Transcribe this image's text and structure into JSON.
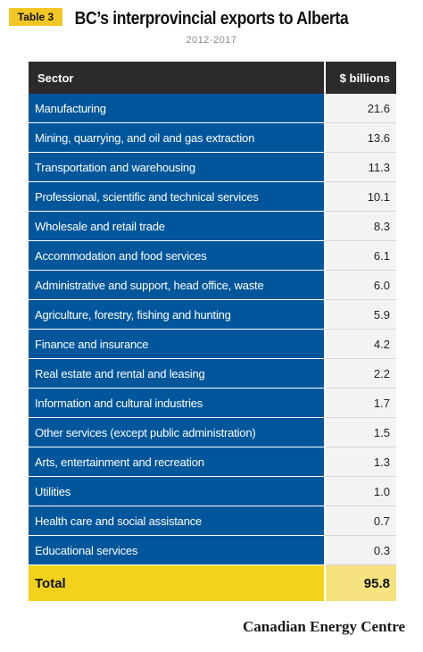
{
  "badge": "Table 3",
  "title": "BC’s interprovincial exports to Alberta",
  "subtitle": "2012-2017",
  "brand": "Canadian Energy Centre",
  "colors": {
    "header": "#2b2b2b",
    "sector_bg": "#00569b",
    "value_bg": "#f3f3f3",
    "total": "#f2d21b",
    "badge": "#f2c624"
  },
  "chart_data": {
    "type": "table",
    "title": "BC’s interprovincial exports to Alberta",
    "subtitle": "2012-2017",
    "columns": [
      "Sector",
      "$ billions"
    ],
    "rows": [
      [
        "Manufacturing",
        "21.6"
      ],
      [
        "Mining, quarrying, and oil and gas extraction",
        "13.6"
      ],
      [
        "Transportation and warehousing",
        "11.3"
      ],
      [
        "Professional, scientific and technical services",
        "10.1"
      ],
      [
        "Wholesale and retail trade",
        "8.3"
      ],
      [
        "Accommodation and food services",
        "6.1"
      ],
      [
        "Administrative and support, head office, waste",
        "6.0"
      ],
      [
        "Agriculture, forestry, fishing and hunting",
        "5.9"
      ],
      [
        "Finance and insurance",
        "4.2"
      ],
      [
        "Real estate and rental and leasing",
        "2.2"
      ],
      [
        "Information and cultural industries",
        "1.7"
      ],
      [
        "Other services (except public administration)",
        "1.5"
      ],
      [
        "Arts, entertainment and recreation",
        "1.3"
      ],
      [
        "Utilities",
        "1.0"
      ],
      [
        "Health care and social assistance",
        "0.7"
      ],
      [
        "Educational services",
        "0.3"
      ]
    ],
    "total": [
      "Total",
      "95.8"
    ]
  }
}
